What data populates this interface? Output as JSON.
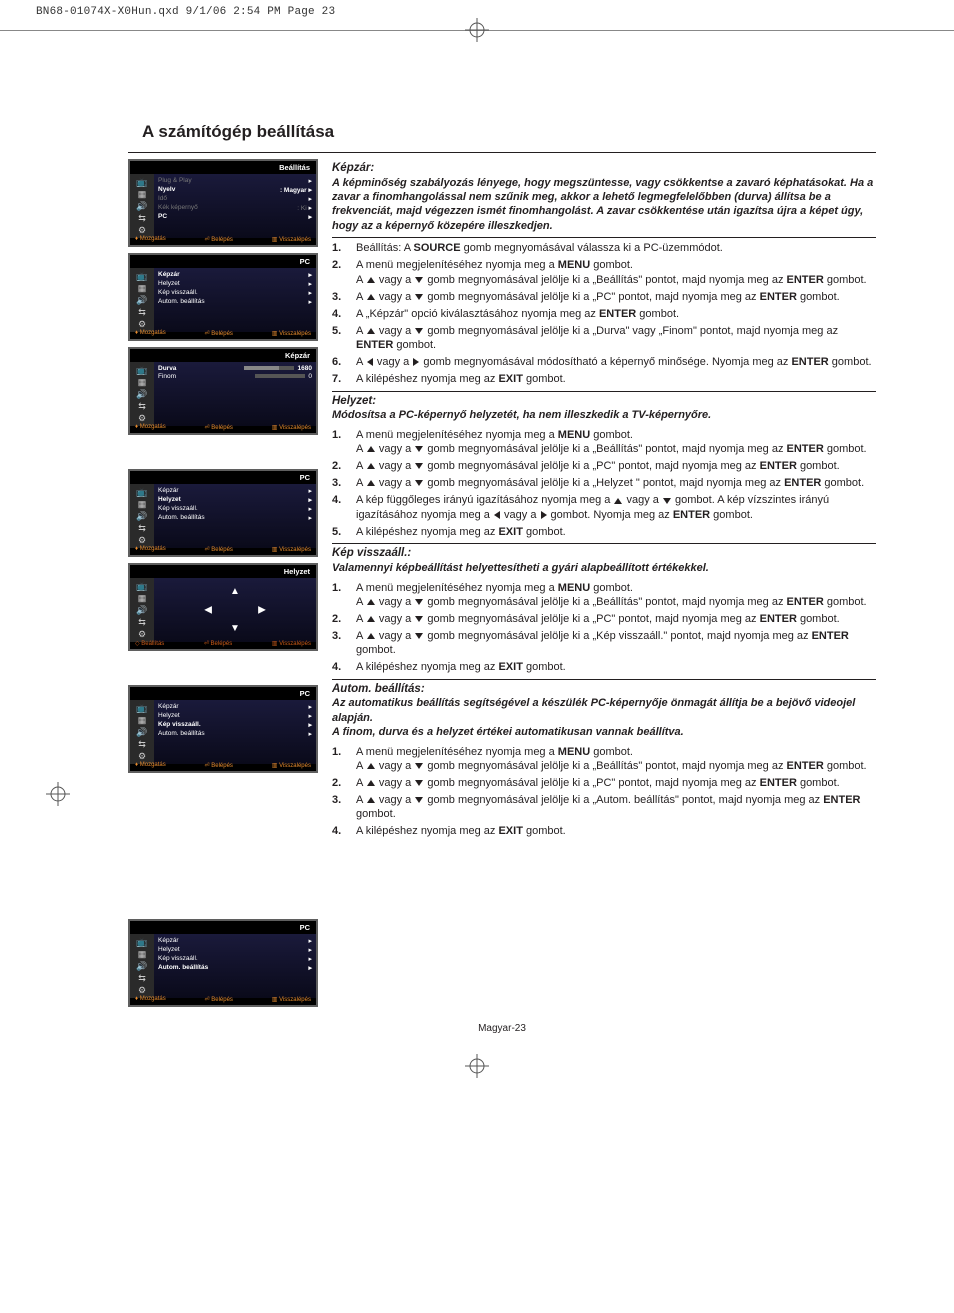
{
  "header_line": "BN68-01074X-X0Hun.qxd  9/1/06  2:54 PM  Page 23",
  "section_title": "A számítógép beállítása",
  "page_number": "Magyar-23",
  "colors": {
    "text": "#231f20",
    "osd_bg": "#000000",
    "osd_accent": "#e48a2e"
  },
  "osd": {
    "titles": {
      "setup": "Beállítás",
      "pc": "PC",
      "kepzar": "Képzár",
      "helyzet": "Helyzet"
    },
    "foot": {
      "move": "Mozgatás",
      "enter": "Belépés",
      "back": "Visszalépés",
      "adjust": "Beállítás"
    },
    "menu1": [
      {
        "label": "Plug & Play",
        "value": "",
        "dim": true
      },
      {
        "label": "Nyelv",
        "value": ": Magyar",
        "hl": true
      },
      {
        "label": "Idő",
        "value": "",
        "dim": true
      },
      {
        "label": "Kék képernyő",
        "value": ": Ki",
        "dim": true
      },
      {
        "label": "PC",
        "value": "",
        "hl": true
      }
    ],
    "menu_pc": [
      {
        "label": "Képzár",
        "hl": true
      },
      {
        "label": "Helyzet",
        "hl": false
      },
      {
        "label": "Kép visszaáll.",
        "hl": false
      },
      {
        "label": "Autom. beállítás",
        "hl": false
      }
    ],
    "menu_kepzar": [
      {
        "label": "Durva",
        "value": "1680"
      },
      {
        "label": "Finom",
        "value": "0"
      }
    ]
  },
  "sections": [
    {
      "head": "Képzár:",
      "intro": "A képminőség szabályozás lényege, hogy megszüntesse, vagy csökkentse a zavaró képhatásokat. Ha a zavar a finomhangolással nem szűnik meg, akkor a lehető legmegfelelőbben (durva) állítsa be a frekvenciát, majd végezzen ismét finomhangolást. A zavar csökkentése után igazítsa újra a képet úgy, hogy az a képernyő közepére illeszkedjen.",
      "steps": [
        "Beállítás: A <b>SOURCE</b> gomb megnyomásával válassza ki a PC-üzemmódot.",
        "A menü megjelenítéséhez nyomja meg a <b>MENU</b> gombot.<br>A {up} vagy a {down} gomb megnyomásával jelölje ki a „Beállítás\" pontot, majd nyomja meg az <b>ENTER</b> gombot.",
        "A {up} vagy a {down} gomb megnyomásával jelölje ki a „PC\" pontot, majd nyomja meg az <b>ENTER</b> gombot.",
        "A „Képzár\" opció kiválasztásához nyomja meg az <b>ENTER</b> gombot.",
        "A {up} vagy a {down} gomb megnyomásával jelölje ki a „Durva\" vagy „Finom\" pontot, majd nyomja meg az <b>ENTER</b> gombot.",
        "A {left} vagy a {right} gomb megnyomásával módosítható a képernyő minősége. Nyomja meg az <b>ENTER</b> gombot.",
        "A kilépéshez nyomja meg az <b>EXIT</b> gombot."
      ]
    },
    {
      "head": "Helyzet:",
      "intro": "Módosítsa a PC-képernyő helyzetét, ha nem illeszkedik a TV-képernyőre.",
      "steps": [
        "A menü megjelenítéséhez nyomja meg a <b>MENU</b> gombot.<br>A {up} vagy a {down} gomb megnyomásával jelölje ki a „Beállítás\" pontot, majd nyomja meg az <b>ENTER</b> gombot.",
        "A {up} vagy a {down} gomb megnyomásával jelölje ki a „PC\" pontot, majd nyomja meg az <b>ENTER</b> gombot.",
        "A {up} vagy a {down} gomb megnyomásával jelölje ki a „Helyzet \" pontot, majd nyomja meg az <b>ENTER</b> gombot.",
        "A kép függőleges irányú igazításához nyomja meg a {up} vagy a {down} gombot. A kép vízszintes irányú igazításához nyomja meg a {left} vagy a {right} gombot. Nyomja meg az <b>ENTER</b> gombot.",
        "A kilépéshez nyomja meg az <b>EXIT</b> gombot."
      ]
    },
    {
      "head": "Kép visszaáll.:",
      "intro": "Valamennyi képbeállítást helyettesítheti a gyári alapbeállított értékekkel.",
      "steps": [
        "A menü megjelenítéséhez nyomja meg a <b>MENU</b> gombot.<br>A {up} vagy a {down} gomb megnyomásával jelölje ki a „Beállítás\" pontot, majd nyomja meg az <b>ENTER</b> gombot.",
        "A {up} vagy a {down} gomb megnyomásával jelölje ki a „PC\" pontot, majd nyomja meg az <b>ENTER</b> gombot.",
        "A {up} vagy a {down} gomb megnyomásával jelölje ki a „Kép visszaáll.\" pontot, majd nyomja meg az <b>ENTER</b> gombot.",
        "A kilépéshez nyomja meg az <b>EXIT</b> gombot."
      ]
    },
    {
      "head": "Autom. beállítás:",
      "intro": "Az automatikus beállítás segítségével a készülék PC-képernyője önmagát állítja be a bejövő videojel alapján.<br>A finom, durva és a helyzet értékei automatikusan vannak beállítva.",
      "steps": [
        "A menü megjelenítéséhez nyomja meg a <b>MENU</b> gombot.<br>A {up} vagy a {down} gomb megnyomásával jelölje ki a „Beállítás\" pontot, majd nyomja meg az <b>ENTER</b> gombot.",
        "A {up} vagy a {down} gomb megnyomásával jelölje ki a „PC\" pontot, majd nyomja meg az <b>ENTER</b> gombot.",
        "A {up} vagy a {down} gomb megnyomásával jelölje ki a „Autom. beállítás\" pontot, majd nyomja meg az <b>ENTER</b> gombot.",
        "A kilépéshez nyomja meg az <b>EXIT</b> gombot."
      ]
    }
  ]
}
